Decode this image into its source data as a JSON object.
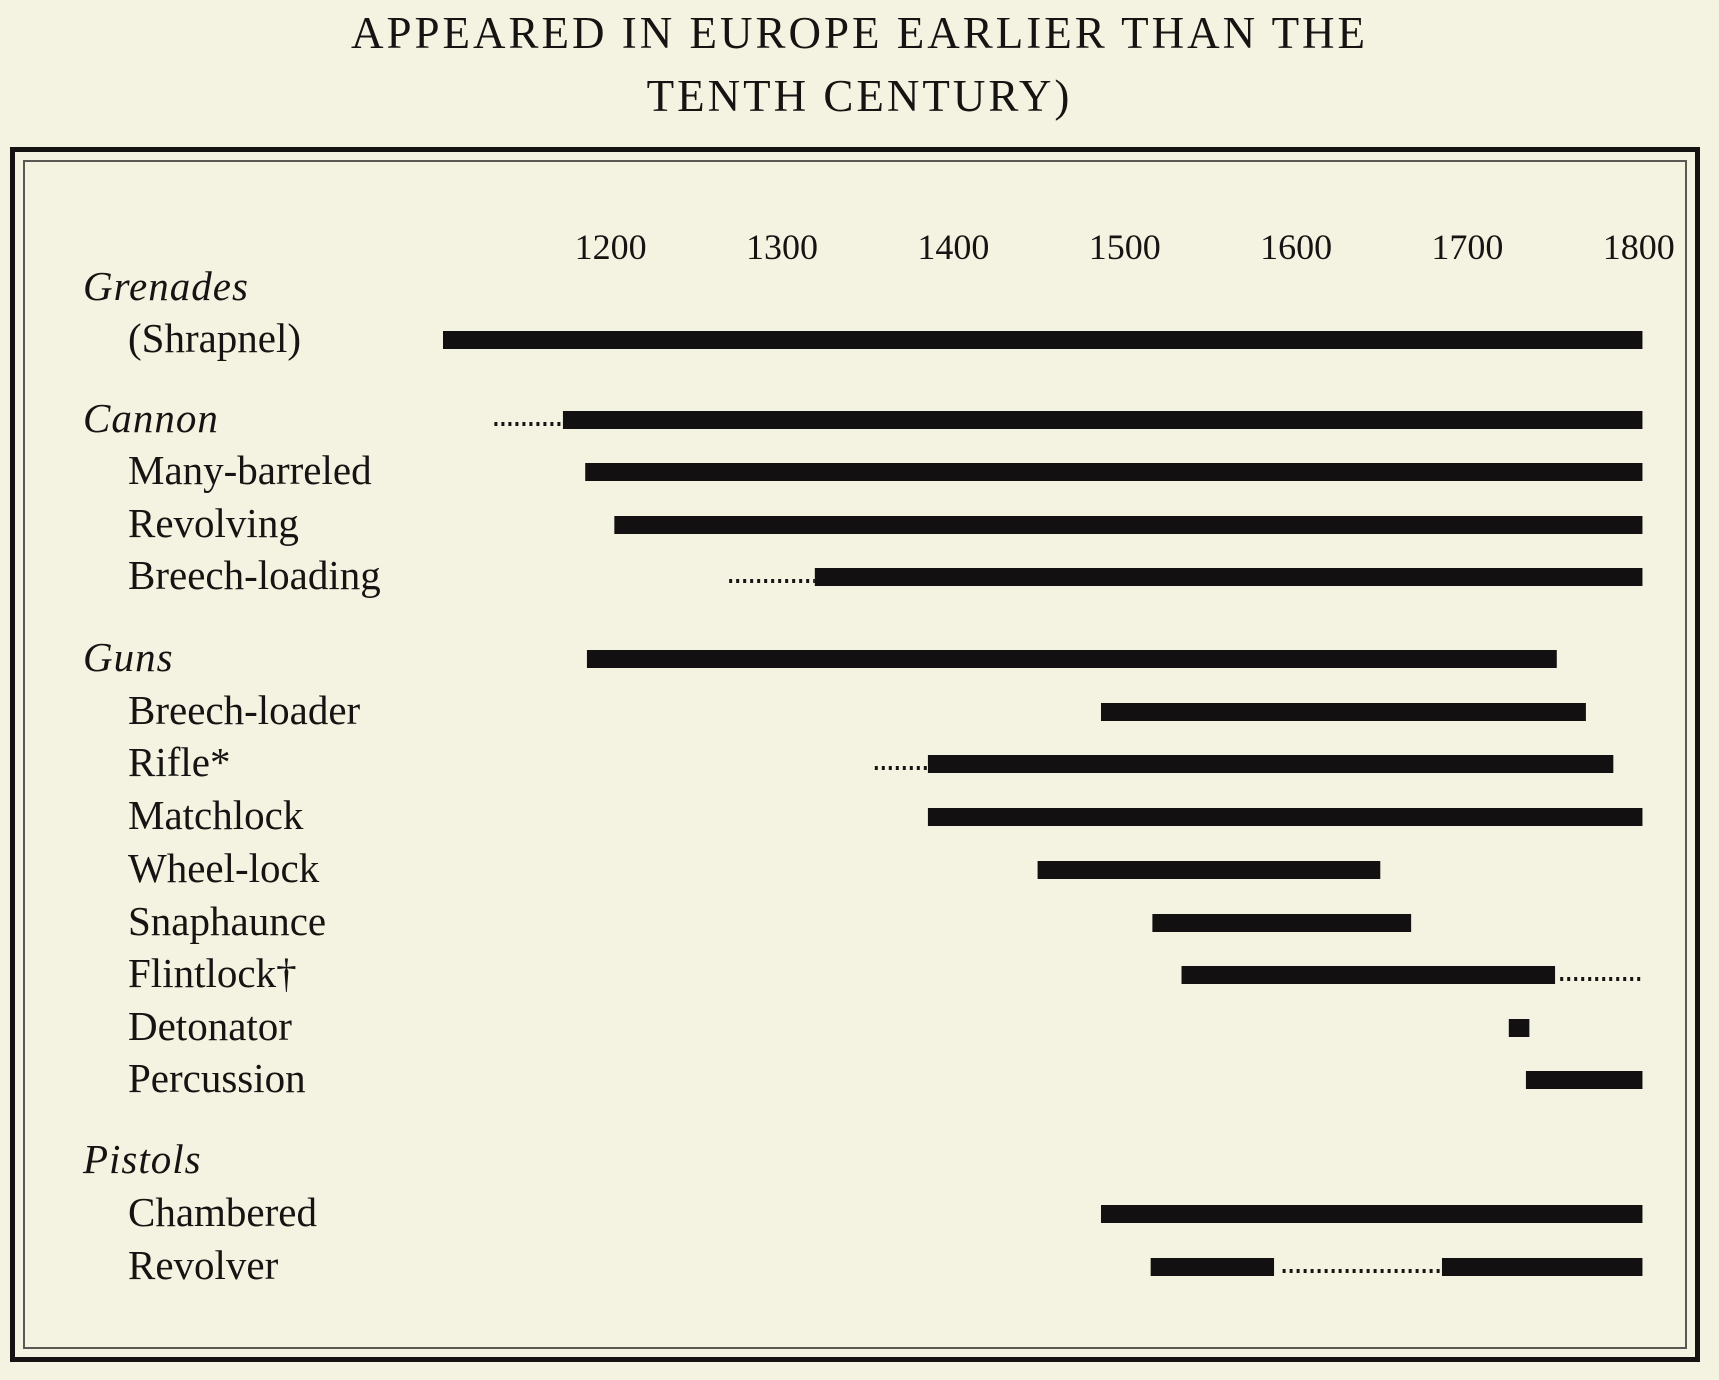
{
  "title_lines": [
    "APPEARED IN EUROPE EARLIER THAN THE",
    "TENTH CENTURY)"
  ],
  "chart_data": {
    "type": "bar",
    "orientation": "horizontal-timeline",
    "title": "APPEARED IN EUROPE EARLIER THAN THE TENTH CENTURY)",
    "xlabel": "",
    "ylabel": "",
    "xlim": [
      1150,
      1850
    ],
    "x_ticks": [
      1200,
      1300,
      1400,
      1500,
      1600,
      1700,
      1800
    ],
    "grid": false,
    "legend": "none",
    "bar_color": "#121010",
    "rows": [
      {
        "label": "Grenades",
        "group_header": true,
        "segments": []
      },
      {
        "label": "(Shrapnel)",
        "group_header": false,
        "segments": [
          {
            "start": 1150,
            "end": 1850,
            "style": "solid"
          }
        ]
      },
      {
        "label": "Cannon",
        "group_header": true,
        "segments": [
          {
            "start": 1180,
            "end": 1220,
            "style": "dotted"
          },
          {
            "start": 1220,
            "end": 1850,
            "style": "solid"
          }
        ]
      },
      {
        "label": "Many-barreled",
        "group_header": false,
        "segments": [
          {
            "start": 1233,
            "end": 1850,
            "style": "solid"
          }
        ]
      },
      {
        "label": "Revolving",
        "group_header": false,
        "segments": [
          {
            "start": 1250,
            "end": 1850,
            "style": "solid"
          }
        ]
      },
      {
        "label": "Breech-loading",
        "group_header": false,
        "segments": [
          {
            "start": 1317,
            "end": 1367,
            "style": "dotted"
          },
          {
            "start": 1367,
            "end": 1850,
            "style": "solid"
          }
        ]
      },
      {
        "label": "Guns",
        "group_header": true,
        "segments": [
          {
            "start": 1234,
            "end": 1800,
            "style": "solid"
          }
        ]
      },
      {
        "label": "Breech-loader",
        "group_header": false,
        "segments": [
          {
            "start": 1534,
            "end": 1817,
            "style": "solid"
          }
        ]
      },
      {
        "label": "Rifle*",
        "group_header": false,
        "segments": [
          {
            "start": 1402,
            "end": 1433,
            "style": "dotted"
          },
          {
            "start": 1433,
            "end": 1833,
            "style": "solid"
          }
        ]
      },
      {
        "label": "Matchlock",
        "group_header": false,
        "segments": [
          {
            "start": 1433,
            "end": 1850,
            "style": "solid"
          }
        ]
      },
      {
        "label": "Wheel-lock",
        "group_header": false,
        "segments": [
          {
            "start": 1497,
            "end": 1697,
            "style": "solid"
          }
        ]
      },
      {
        "label": "Snaphaunce",
        "group_header": false,
        "segments": [
          {
            "start": 1564,
            "end": 1715,
            "style": "solid"
          }
        ]
      },
      {
        "label": "Flintlock†",
        "group_header": false,
        "segments": [
          {
            "start": 1581,
            "end": 1799,
            "style": "solid"
          },
          {
            "start": 1802,
            "end": 1850,
            "style": "dotted"
          }
        ]
      },
      {
        "label": "Detonator",
        "group_header": false,
        "segments": [
          {
            "start": 1772,
            "end": 1784,
            "style": "solid"
          }
        ]
      },
      {
        "label": "Percussion",
        "group_header": false,
        "segments": [
          {
            "start": 1782,
            "end": 1850,
            "style": "solid"
          }
        ]
      },
      {
        "label": "Pistols",
        "group_header": true,
        "segments": []
      },
      {
        "label": "Chambered",
        "group_header": false,
        "segments": [
          {
            "start": 1534,
            "end": 1850,
            "style": "solid"
          }
        ]
      },
      {
        "label": "Revolver",
        "group_header": false,
        "segments": [
          {
            "start": 1563,
            "end": 1635,
            "style": "solid"
          },
          {
            "start": 1640,
            "end": 1733,
            "style": "dotted"
          },
          {
            "start": 1733,
            "end": 1850,
            "style": "solid"
          }
        ]
      }
    ]
  }
}
